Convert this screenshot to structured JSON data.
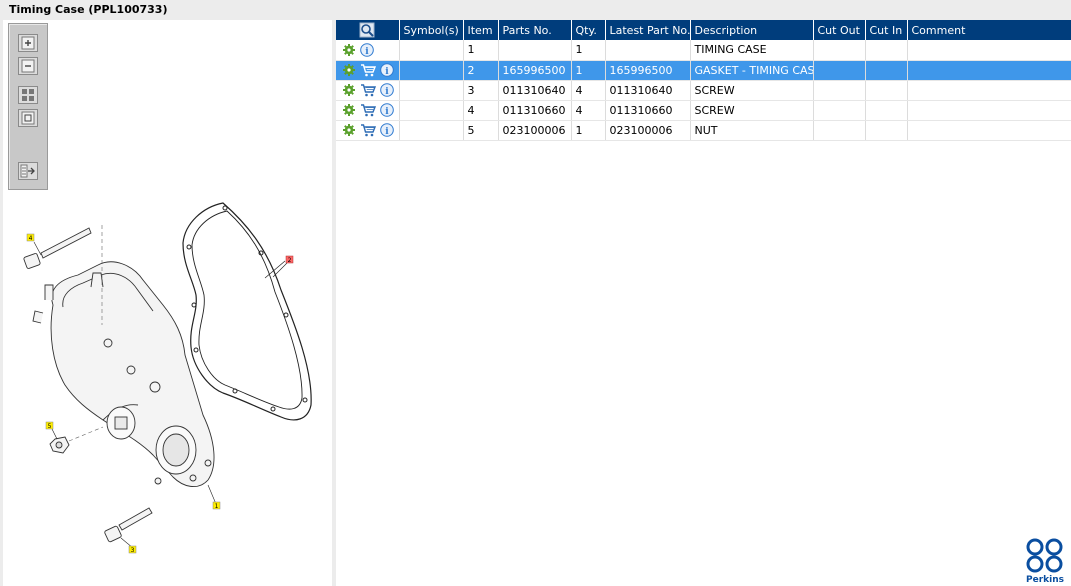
{
  "window": {
    "title": "Timing Case (PPL100733)"
  },
  "toolbar": {
    "buttons": [
      "zoom-in",
      "zoom-out",
      "fit-page",
      "actual-size",
      "export"
    ]
  },
  "callouts": [
    "4",
    "2",
    "5",
    "1",
    "3"
  ],
  "table": {
    "columns": [
      "Symbol(s)",
      "Item",
      "Parts No.",
      "Qty.",
      "Latest Part No.",
      "Description",
      "Cut Out",
      "Cut In",
      "Comment"
    ],
    "rows": [
      {
        "has_cart": false,
        "selected": false,
        "symbols": "",
        "item": "1",
        "part_no": "",
        "qty": "1",
        "latest_part_no": "",
        "description": "TIMING CASE",
        "cut_out": "",
        "cut_in": "",
        "comment": ""
      },
      {
        "has_cart": true,
        "selected": true,
        "symbols": "",
        "item": "2",
        "part_no": "165996500",
        "qty": "1",
        "latest_part_no": "165996500",
        "description": "GASKET - TIMING CASE",
        "cut_out": "",
        "cut_in": "",
        "comment": ""
      },
      {
        "has_cart": true,
        "selected": false,
        "symbols": "",
        "item": "3",
        "part_no": "011310640",
        "qty": "4",
        "latest_part_no": "011310640",
        "description": "SCREW",
        "cut_out": "",
        "cut_in": "",
        "comment": ""
      },
      {
        "has_cart": true,
        "selected": false,
        "symbols": "",
        "item": "4",
        "part_no": "011310660",
        "qty": "4",
        "latest_part_no": "011310660",
        "description": "SCREW",
        "cut_out": "",
        "cut_in": "",
        "comment": ""
      },
      {
        "has_cart": true,
        "selected": false,
        "symbols": "",
        "item": "5",
        "part_no": "023100006",
        "qty": "1",
        "latest_part_no": "023100006",
        "description": "NUT",
        "cut_out": "",
        "cut_in": "",
        "comment": ""
      }
    ]
  },
  "brand": {
    "name": "Perkins",
    "color": "#0a4ea0"
  },
  "colors": {
    "header_bg": "#003d7c",
    "selected_bg": "#3f97ea",
    "gear": "#5aa02c",
    "info": "#2f7ad0",
    "callout_yellow": "#ffee00",
    "callout_red": "#ff6666"
  }
}
